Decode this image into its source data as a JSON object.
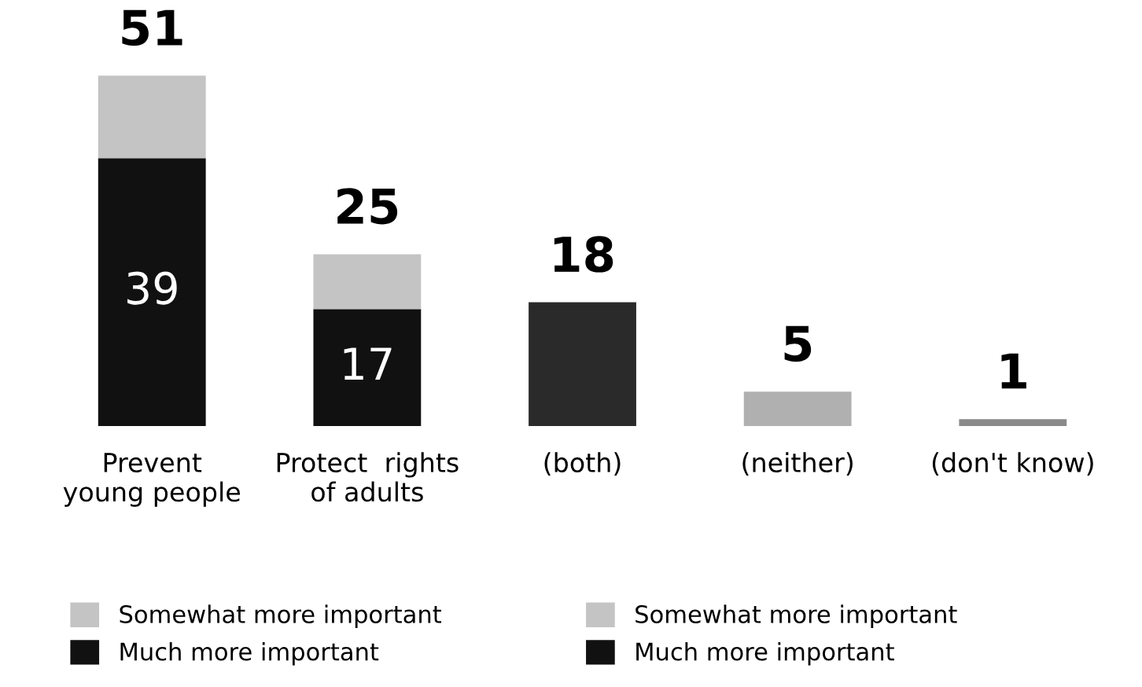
{
  "chart_data": {
    "type": "bar",
    "stacked": true,
    "categories": [
      "Prevent\nyoung people",
      "Protect  rights\nof adults",
      "(both)",
      "(neither)",
      "(don't know)"
    ],
    "series": [
      {
        "name": "Much more important",
        "color": "#111111",
        "values": [
          39,
          null,
          null,
          null,
          null
        ],
        "value_labels": [
          "39",
          null,
          null,
          null,
          null
        ]
      },
      {
        "name": "Somewhat more important",
        "color": "#c4c4c4",
        "values": [
          12,
          null,
          null,
          null,
          null
        ]
      },
      {
        "name": "Much more important",
        "color": "#111111",
        "values": [
          null,
          17,
          null,
          null,
          null
        ],
        "value_labels": [
          null,
          "17",
          null,
          null,
          null
        ]
      },
      {
        "name": "Somewhat more important",
        "color": "#c4c4c4",
        "values": [
          null,
          8,
          null,
          null,
          null
        ]
      },
      {
        "colors": [
          "#111111",
          "#111111",
          "#2a2a2a",
          "#b0b0b0",
          "#8a8a8a"
        ],
        "values": [
          null,
          null,
          18,
          5,
          1
        ]
      }
    ],
    "totals": [
      "51",
      "25",
      "18",
      "5",
      "1"
    ],
    "legend": "bottom"
  }
}
